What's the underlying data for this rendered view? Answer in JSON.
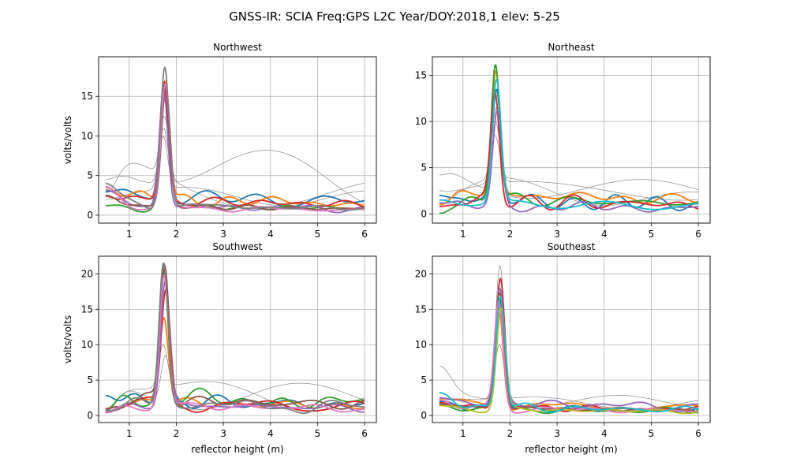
{
  "figure_title": "GNSS-IR: SCIA Freq:GPS L2C Year/DOY:2018,1 elev: 5-25",
  "chart_data": [
    {
      "type": "line",
      "title": "Northwest",
      "xlabel": "",
      "ylabel": "volts/volts",
      "xlim": [
        0.35,
        6.25
      ],
      "ylim": [
        -1,
        20
      ],
      "xticks": [
        1,
        2,
        3,
        4,
        5,
        6
      ],
      "yticks": [
        0,
        5,
        10,
        15
      ],
      "grid": true,
      "peak_x": 1.75,
      "series": [
        {
          "color": "#1f77b4",
          "width": 1.8,
          "peak": 16.0,
          "base": 2.5,
          "start": 3.0
        },
        {
          "color": "#ff7f0e",
          "width": 1.8,
          "peak": 17.0,
          "base": 2.2,
          "start": 3.5
        },
        {
          "color": "#2ca02c",
          "width": 1.8,
          "peak": 16.5,
          "base": 1.3,
          "start": 1.2
        },
        {
          "color": "#d62728",
          "width": 1.8,
          "peak": 16.8,
          "base": 2.0,
          "start": 2.4
        },
        {
          "color": "#9467bd",
          "width": 1.8,
          "peak": 15.8,
          "base": 1.2,
          "start": 3.2
        },
        {
          "color": "#8c564b",
          "width": 1.8,
          "peak": 16.2,
          "base": 1.2,
          "start": 2.5
        },
        {
          "color": "#e377c2",
          "width": 1.8,
          "peak": 16.6,
          "base": 1.0,
          "start": 3.6
        },
        {
          "color": "#7f7f7f",
          "width": 1.8,
          "peak": 18.7,
          "base": 1.3,
          "start": 4.0
        },
        {
          "color": "#888888",
          "width": 0.7,
          "peak": 12.5,
          "base": 4.5,
          "start": 2.8
        },
        {
          "color": "#888888",
          "width": 0.7,
          "peak": 11.0,
          "base": 5.5,
          "start": 4.5
        },
        {
          "color": "#888888",
          "width": 0.7,
          "peak": 10.0,
          "base": 3.0,
          "start": 2.0
        }
      ]
    },
    {
      "type": "line",
      "title": "Northeast",
      "xlabel": "",
      "ylabel": "",
      "xlim": [
        0.35,
        6.25
      ],
      "ylim": [
        -1,
        17
      ],
      "xticks": [
        1,
        2,
        3,
        4,
        5,
        6
      ],
      "yticks": [
        0,
        5,
        10,
        15
      ],
      "grid": true,
      "peak_x": 1.7,
      "series": [
        {
          "color": "#1f77b4",
          "width": 1.8,
          "peak": 13.5,
          "base": 1.6,
          "start": 2.0
        },
        {
          "color": "#ff7f0e",
          "width": 1.8,
          "peak": 15.5,
          "base": 2.3,
          "start": 1.0
        },
        {
          "color": "#2ca02c",
          "width": 1.8,
          "peak": 16.2,
          "base": 1.7,
          "start": 0.0
        },
        {
          "color": "#d62728",
          "width": 1.8,
          "peak": 13.2,
          "base": 1.5,
          "start": 0.8
        },
        {
          "color": "#9467bd",
          "width": 1.8,
          "peak": 11.2,
          "base": 0.9,
          "start": 1.2
        },
        {
          "color": "#17becf",
          "width": 1.8,
          "peak": 14.6,
          "base": 1.2,
          "start": 1.5
        },
        {
          "color": "#888888",
          "width": 0.7,
          "peak": 11.5,
          "base": 3.8,
          "start": 4.2
        },
        {
          "color": "#888888",
          "width": 0.7,
          "peak": 10.0,
          "base": 3.2,
          "start": 2.5
        },
        {
          "color": "#888888",
          "width": 0.7,
          "peak": 8.5,
          "base": 2.6,
          "start": 1.5
        }
      ]
    },
    {
      "type": "line",
      "title": "Southwest",
      "xlabel": "reflector height (m)",
      "ylabel": "volts/volts",
      "xlim": [
        0.35,
        6.25
      ],
      "ylim": [
        -1,
        22.5
      ],
      "xticks": [
        1,
        2,
        3,
        4,
        5,
        6
      ],
      "yticks": [
        0,
        5,
        10,
        15,
        20
      ],
      "grid": true,
      "peak_x": 1.75,
      "series": [
        {
          "color": "#1f77b4",
          "width": 1.8,
          "peak": 20.5,
          "base": 2.2,
          "start": 2.8
        },
        {
          "color": "#ff7f0e",
          "width": 1.8,
          "peak": 13.8,
          "base": 2.0,
          "start": 1.0
        },
        {
          "color": "#2ca02c",
          "width": 1.8,
          "peak": 21.5,
          "base": 2.6,
          "start": 0.8
        },
        {
          "color": "#d62728",
          "width": 1.8,
          "peak": 17.8,
          "base": 1.8,
          "start": 0.6
        },
        {
          "color": "#9467bd",
          "width": 1.8,
          "peak": 19.0,
          "base": 1.6,
          "start": 0.4
        },
        {
          "color": "#8c564b",
          "width": 1.8,
          "peak": 21.2,
          "base": 2.3,
          "start": 0.9
        },
        {
          "color": "#e377c2",
          "width": 1.8,
          "peak": 19.8,
          "base": 1.5,
          "start": 0.5
        },
        {
          "color": "#7f7f7f",
          "width": 1.8,
          "peak": 21.6,
          "base": 1.7,
          "start": 0.7
        },
        {
          "color": "#888888",
          "width": 0.7,
          "peak": 10.0,
          "base": 4.0,
          "start": 1.0
        },
        {
          "color": "#888888",
          "width": 0.7,
          "peak": 8.5,
          "base": 3.5,
          "start": 0.5
        }
      ]
    },
    {
      "type": "line",
      "title": "Southeast",
      "xlabel": "reflector height (m)",
      "ylabel": "",
      "xlim": [
        0.35,
        6.25
      ],
      "ylim": [
        -1,
        22.5
      ],
      "xticks": [
        1,
        2,
        3,
        4,
        5,
        6
      ],
      "yticks": [
        0,
        5,
        10,
        15,
        20
      ],
      "grid": true,
      "peak_x": 1.78,
      "series": [
        {
          "color": "#1f77b4",
          "width": 1.8,
          "peak": 16.5,
          "base": 1.2,
          "start": 2.0
        },
        {
          "color": "#ff7f0e",
          "width": 1.8,
          "peak": 15.5,
          "base": 1.6,
          "start": 2.4
        },
        {
          "color": "#2ca02c",
          "width": 1.8,
          "peak": 14.8,
          "base": 1.0,
          "start": 1.5
        },
        {
          "color": "#d62728",
          "width": 1.8,
          "peak": 19.4,
          "base": 1.3,
          "start": 1.8
        },
        {
          "color": "#9467bd",
          "width": 1.8,
          "peak": 18.0,
          "base": 1.9,
          "start": 2.5
        },
        {
          "color": "#8c564b",
          "width": 1.8,
          "peak": 17.4,
          "base": 1.1,
          "start": 1.6
        },
        {
          "color": "#e377c2",
          "width": 1.8,
          "peak": 16.2,
          "base": 1.0,
          "start": 2.2
        },
        {
          "color": "#bcbd22",
          "width": 1.8,
          "peak": 15.2,
          "base": 0.9,
          "start": 1.4
        },
        {
          "color": "#17becf",
          "width": 1.8,
          "peak": 16.8,
          "base": 1.2,
          "start": 3.2
        },
        {
          "color": "#888888",
          "width": 0.7,
          "peak": 21.2,
          "base": 2.2,
          "start": 7.0
        },
        {
          "color": "#888888",
          "width": 0.7,
          "peak": 10.0,
          "base": 2.8,
          "start": 2.0
        }
      ]
    }
  ]
}
